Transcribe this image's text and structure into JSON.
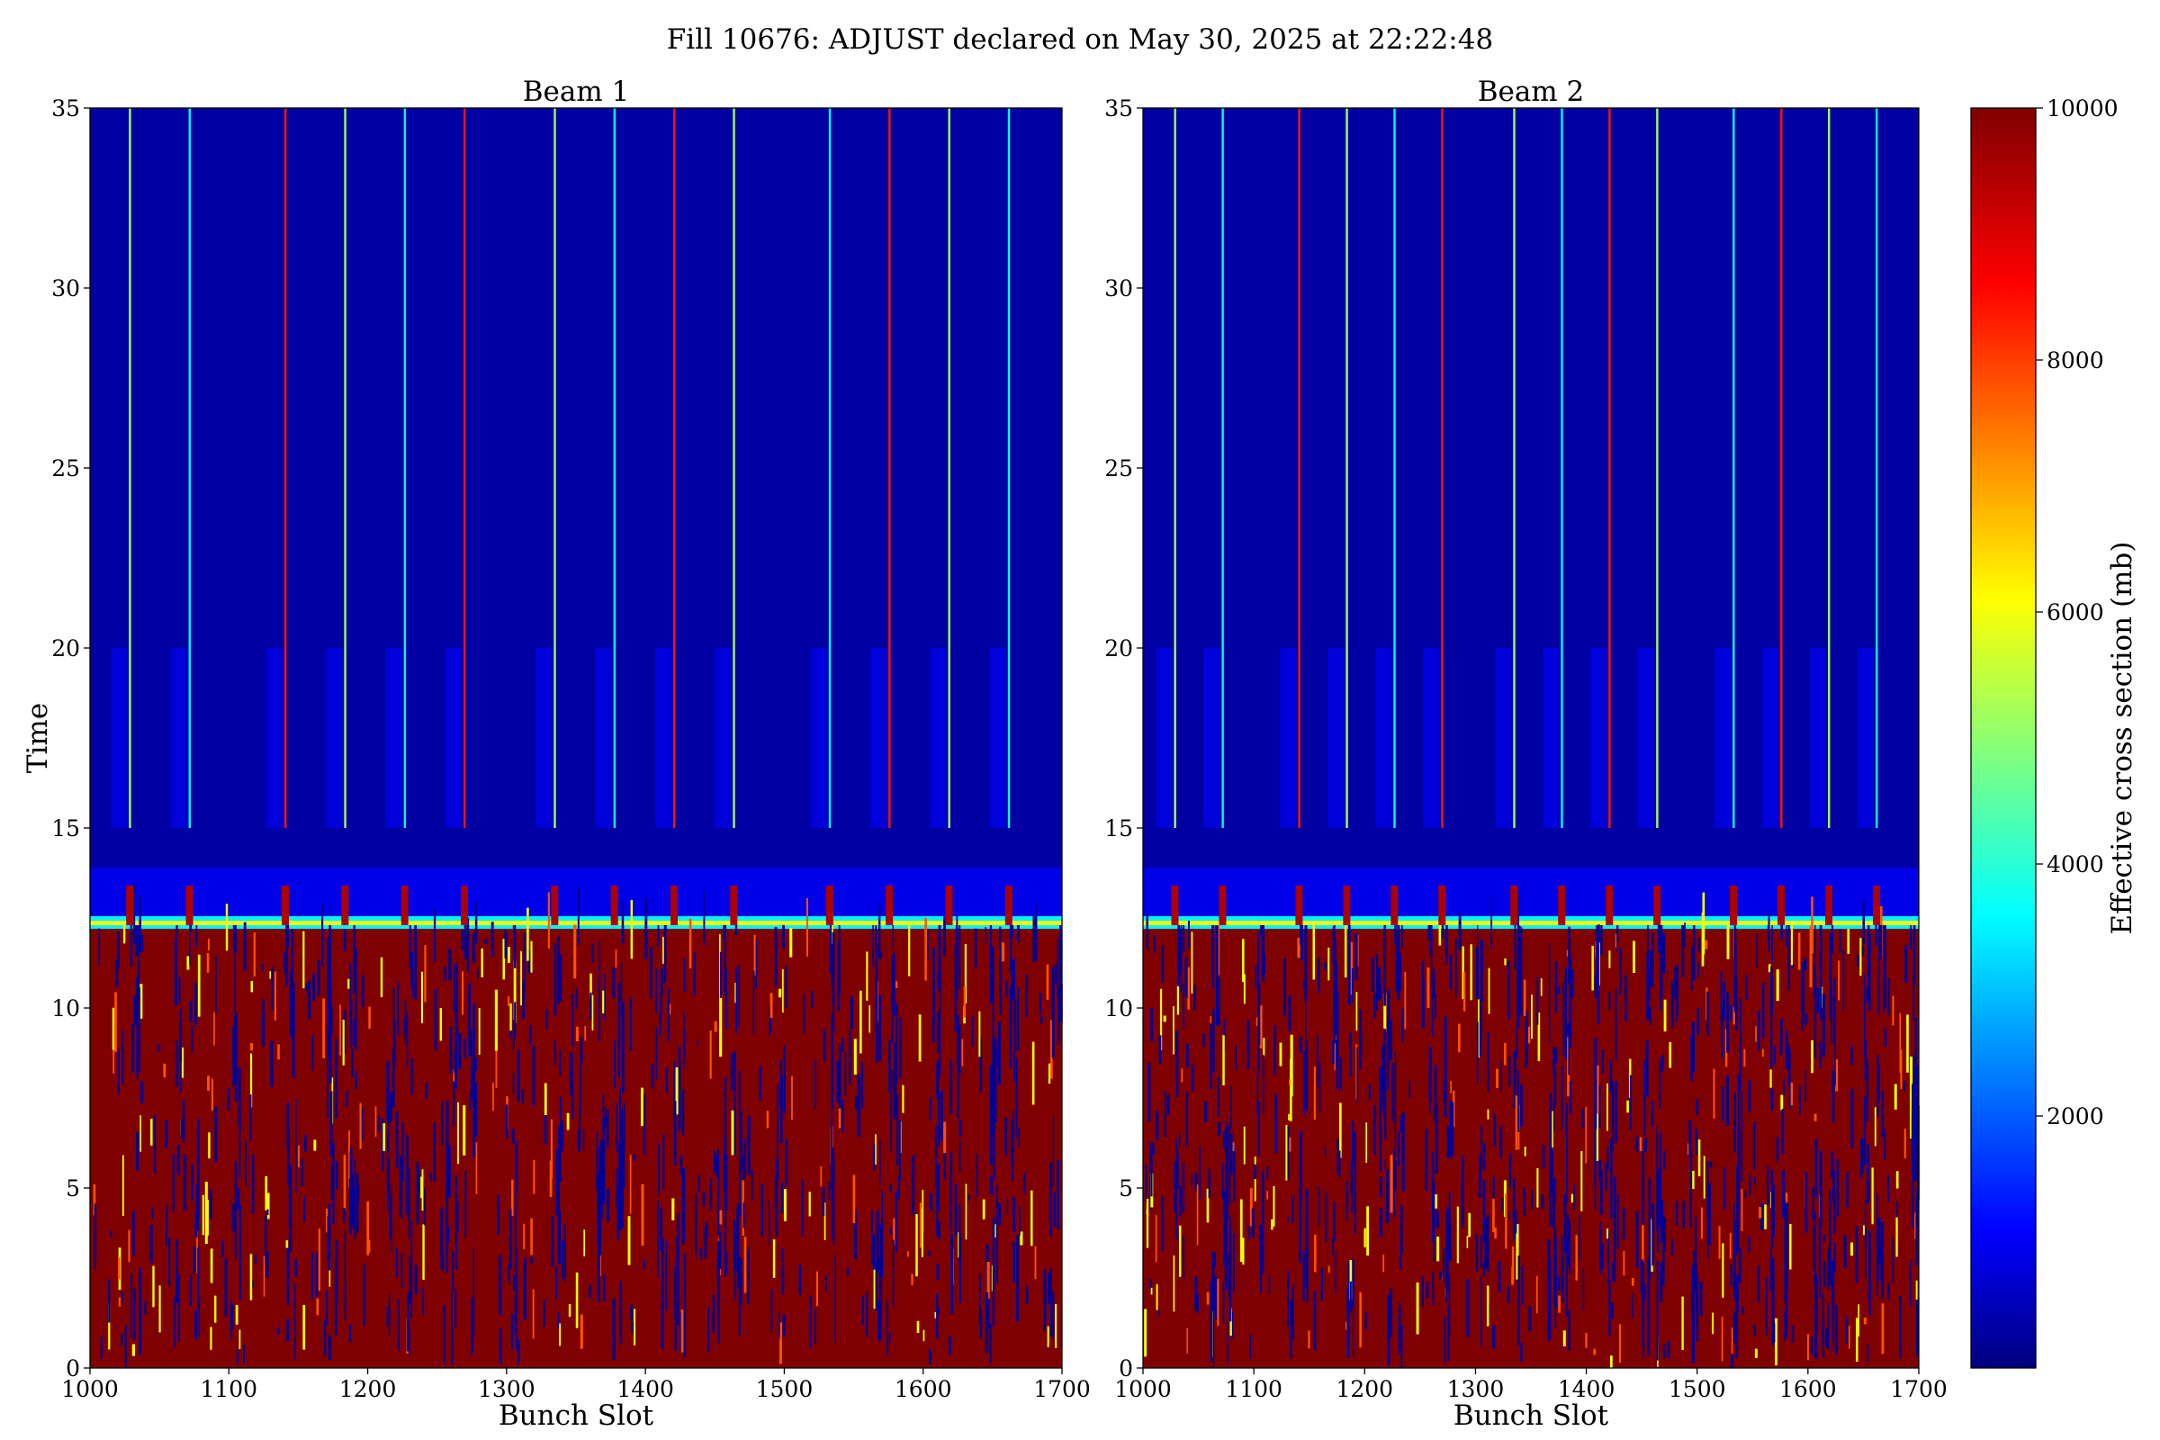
{
  "figure": {
    "suptitle": "Fill 10676: ADJUST declared on May 30, 2025 at 22:22:48"
  },
  "chart_data": [
    {
      "type": "heatmap",
      "title": "Beam 1",
      "xlabel": "Bunch Slot",
      "ylabel": "Time",
      "xlim": [
        1000,
        1700
      ],
      "ylim": [
        0,
        35
      ],
      "xticks": [
        "1000",
        "1100",
        "1200",
        "1300",
        "1400",
        "1500",
        "1600",
        "1700"
      ],
      "yticks": [
        "0",
        "5",
        "10",
        "15",
        "20",
        "25",
        "30",
        "35"
      ],
      "grid": false,
      "transition_time": 12.3,
      "low_time_value": 10000,
      "high_time_background": 300,
      "train_start_slots": [
        1028,
        1071,
        1140,
        1183,
        1226,
        1269,
        1334,
        1377,
        1420,
        1463,
        1532,
        1575,
        1618,
        1661
      ],
      "train_length_slots": 36
    },
    {
      "type": "heatmap",
      "title": "Beam 2",
      "xlabel": "Bunch Slot",
      "ylabel": "",
      "xlim": [
        1000,
        1700
      ],
      "ylim": [
        0,
        35
      ],
      "xticks": [
        "1000",
        "1100",
        "1200",
        "1300",
        "1400",
        "1500",
        "1600",
        "1700"
      ],
      "yticks": [
        "0",
        "5",
        "10",
        "15",
        "20",
        "25",
        "30",
        "35"
      ],
      "grid": false,
      "transition_time": 12.3,
      "low_time_value": 10000,
      "high_time_background": 300,
      "train_start_slots": [
        1028,
        1071,
        1140,
        1183,
        1226,
        1269,
        1334,
        1377,
        1420,
        1463,
        1532,
        1575,
        1618,
        1661
      ],
      "train_length_slots": 36
    }
  ],
  "colorbar": {
    "label": "Effective cross section (mb)",
    "colormap": "jet",
    "range": [
      0,
      10000
    ],
    "ticks": [
      "2000",
      "4000",
      "6000",
      "8000",
      "10000"
    ],
    "colors": [
      "#00007f",
      "#0000ff",
      "#00ffff",
      "#ffff00",
      "#ff0000",
      "#7f0000"
    ]
  }
}
